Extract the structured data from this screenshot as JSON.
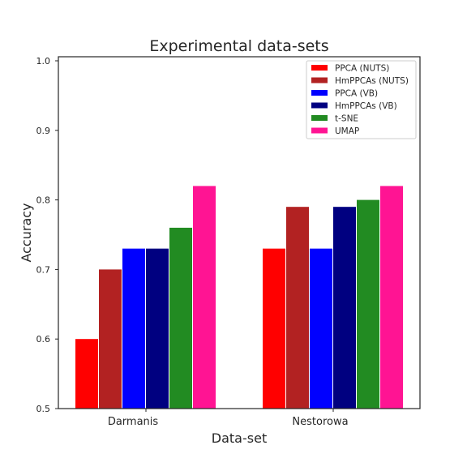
{
  "chart_data": {
    "type": "bar",
    "title": "Experimental data-sets",
    "xlabel": "Data-set",
    "ylabel": "Accuracy",
    "categories": [
      "Darmanis",
      "Nestorowa"
    ],
    "ylim": [
      0.5,
      1.0
    ],
    "yticks": [
      "0.5",
      "0.6",
      "0.7",
      "0.8",
      "0.9",
      "1.0"
    ],
    "grid": false,
    "legend_position": "top-right",
    "series": [
      {
        "name": "PPCA (NUTS)",
        "color": "#ff0000",
        "values": [
          0.6,
          0.73
        ]
      },
      {
        "name": "HmPPCAs (NUTS)",
        "color": "#b22222",
        "values": [
          0.7,
          0.79
        ]
      },
      {
        "name": "PPCA (VB)",
        "color": "#0000ff",
        "values": [
          0.73,
          0.73
        ]
      },
      {
        "name": "HmPPCAs (VB)",
        "color": "#000080",
        "values": [
          0.73,
          0.79
        ]
      },
      {
        "name": "t-SNE",
        "color": "#228b22",
        "values": [
          0.76,
          0.8
        ]
      },
      {
        "name": "UMAP",
        "color": "#ff1493",
        "values": [
          0.82,
          0.82
        ]
      }
    ]
  }
}
